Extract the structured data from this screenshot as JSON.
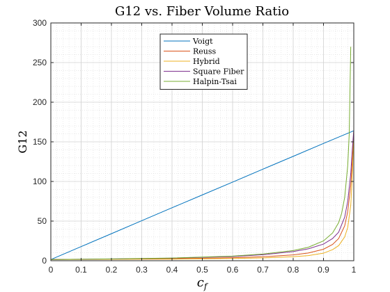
{
  "chart_data": {
    "type": "line",
    "title": "G12 vs. Fiber Volume Ratio",
    "xlabel": "c_f",
    "ylabel": "G12",
    "xlim": [
      0,
      1
    ],
    "ylim": [
      0,
      300
    ],
    "xticks": [
      0,
      0.1,
      0.2,
      0.3,
      0.4,
      0.5,
      0.6,
      0.7,
      0.8,
      0.9,
      1
    ],
    "xtick_labels": [
      "0",
      "0.1",
      "0.2",
      "0.3",
      "0.4",
      "0.5",
      "0.6",
      "0.7",
      "0.8",
      "0.9",
      "1"
    ],
    "yticks": [
      0,
      50,
      100,
      150,
      200,
      250,
      300
    ],
    "ytick_labels": [
      "0",
      "50",
      "100",
      "150",
      "200",
      "250",
      "300"
    ],
    "grid": true,
    "minor_grid": true,
    "legend_position": "top-center",
    "series": [
      {
        "name": "Voigt",
        "color": "#0072BD",
        "x": [
          0,
          0.1,
          0.2,
          0.3,
          0.4,
          0.5,
          0.6,
          0.7,
          0.8,
          0.9,
          1.0
        ],
        "y": [
          1.5,
          17.8,
          34.1,
          50.5,
          66.8,
          83.0,
          99.2,
          115.5,
          131.7,
          148.0,
          164.0
        ]
      },
      {
        "name": "Reuss",
        "color": "#D95319",
        "x": [
          0,
          0.2,
          0.4,
          0.6,
          0.7,
          0.8,
          0.85,
          0.9,
          0.93,
          0.95,
          0.97,
          0.98,
          0.99,
          0.995,
          1.0
        ],
        "y": [
          1.5,
          1.9,
          2.5,
          3.7,
          5.0,
          7.3,
          9.8,
          14.5,
          20.5,
          28.0,
          44.0,
          62.0,
          95.0,
          125.0,
          164.0
        ]
      },
      {
        "name": "Hybrid",
        "color": "#EDB120",
        "x": [
          0,
          0.2,
          0.4,
          0.6,
          0.7,
          0.8,
          0.85,
          0.9,
          0.93,
          0.95,
          0.97,
          0.98,
          0.99,
          0.995,
          1.0
        ],
        "y": [
          1.5,
          1.7,
          2.0,
          2.8,
          3.5,
          5.0,
          6.5,
          9.5,
          14.0,
          19.0,
          30.0,
          42.0,
          70.0,
          105.0,
          164.0
        ]
      },
      {
        "name": "Square Fiber",
        "color": "#7E2F8E",
        "x": [
          0,
          0.2,
          0.4,
          0.6,
          0.7,
          0.8,
          0.85,
          0.9,
          0.93,
          0.95,
          0.97,
          0.98,
          0.99,
          0.995,
          1.0
        ],
        "y": [
          1.5,
          2.2,
          3.2,
          5.3,
          7.6,
          11.5,
          15.0,
          21.0,
          28.0,
          36.0,
          55.0,
          75.0,
          110.0,
          140.0,
          165.0
        ]
      },
      {
        "name": "Halpin-Tsai",
        "color": "#77AC30",
        "x": [
          0,
          0.2,
          0.4,
          0.6,
          0.7,
          0.8,
          0.85,
          0.9,
          0.93,
          0.95,
          0.96,
          0.97,
          0.98,
          0.985,
          0.99
        ],
        "y": [
          1.5,
          2.3,
          3.4,
          5.8,
          8.4,
          12.8,
          17.0,
          25.0,
          35.0,
          48.0,
          60.0,
          80.0,
          120.0,
          160.0,
          270.0
        ]
      }
    ]
  }
}
